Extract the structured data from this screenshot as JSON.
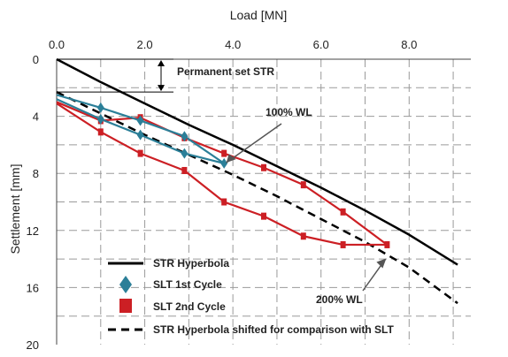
{
  "chart_data": {
    "type": "line",
    "xlabel": "Load [MN]",
    "ylabel": "Settlement [mm]",
    "xlim": [
      0,
      9.4
    ],
    "ylim": [
      0,
      20
    ],
    "y_inverted": true,
    "x_axis_position": "top",
    "grid": true,
    "xticks": [
      "0.0",
      "2.0",
      "4.0",
      "6.0",
      "8.0"
    ],
    "yticks": [
      "0",
      "4",
      "8",
      "12",
      "16",
      "20"
    ],
    "legend_position": "bottom-left",
    "series": [
      {
        "name": "STR Hyperbola",
        "color": "#000000",
        "style": "solid",
        "x": [
          0,
          1,
          2,
          3,
          4,
          5,
          6,
          7,
          8,
          9.1
        ],
        "y": [
          0,
          1.6,
          3.1,
          4.6,
          6.0,
          7.5,
          9.0,
          10.6,
          12.3,
          14.4
        ]
      },
      {
        "name": "SLT 1st Cycle",
        "color": "#2b7f98",
        "marker": "diamond",
        "x": [
          0,
          1.0,
          1.9,
          2.9,
          3.8,
          2.9,
          1.9,
          1.0,
          0
        ],
        "y": [
          2.5,
          3.4,
          4.3,
          5.4,
          7.3,
          6.6,
          5.3,
          4.2,
          2.8
        ]
      },
      {
        "name": "SLT 2nd Cycle",
        "color": "#cc1f24",
        "marker": "square",
        "x": [
          0,
          1.0,
          1.9,
          2.9,
          3.8,
          4.7,
          5.6,
          6.5,
          7.5,
          6.5,
          5.6,
          4.7,
          3.8,
          2.9,
          1.9,
          1.0,
          0
        ],
        "y": [
          3.0,
          4.3,
          4.1,
          5.5,
          6.6,
          7.6,
          8.8,
          10.7,
          13.0,
          13.0,
          12.4,
          11.0,
          10.0,
          7.8,
          6.6,
          5.1,
          3.1
        ]
      },
      {
        "name": "STR Hyperbola shifted for comparison with SLT",
        "color": "#000000",
        "style": "dashed",
        "x": [
          0,
          1,
          2,
          3,
          4,
          5,
          6,
          7,
          8,
          9.1
        ],
        "y": [
          2.3,
          3.8,
          5.3,
          6.7,
          8.1,
          9.6,
          11.2,
          12.8,
          14.6,
          17.1
        ]
      }
    ],
    "annotations": {
      "permanent_set": "Permanent set STR",
      "wl100": "100% WL",
      "wl200": "200% WL"
    }
  }
}
